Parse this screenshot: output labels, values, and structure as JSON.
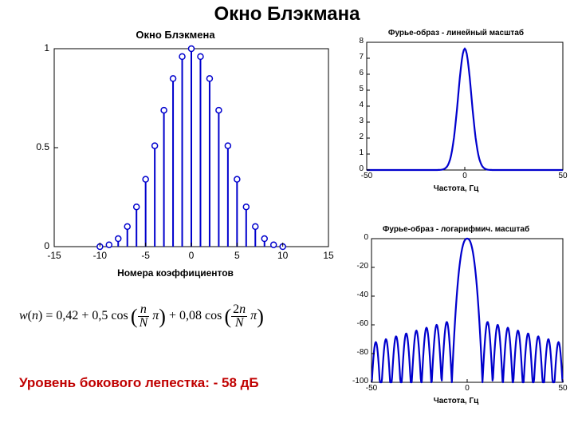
{
  "page": {
    "title": "Окно Блэкмана",
    "title_color": "#000000",
    "sidelobe_text": "Уровень бокового лепестка: - 58 дБ",
    "sidelobe_color": "#c00000",
    "formula_html": "<i>w</i>(<i>n</i>) = 0,42 + 0,5 cos&#8201;<span style='display:inline-block;vertical-align:middle;font-size:26px;'>(</span><span style='display:inline-block;vertical-align:middle;text-align:center;line-height:1;'><span style='display:block;border-bottom:1px solid #000;padding:0 2px;'><i>n</i></span><span style='display:block;padding:0 2px;'><i>N</i></span></span>&nbsp;<i>&pi;</i><span style='display:inline-block;vertical-align:middle;font-size:26px;'>)</span> + 0,08 cos&#8201;<span style='display:inline-block;vertical-align:middle;font-size:26px;'>(</span><span style='display:inline-block;vertical-align:middle;text-align:center;line-height:1;'><span style='display:block;border-bottom:1px solid #000;padding:0 2px;'>2<i>n</i></span><span style='display:block;padding:0 2px;'><i>N</i></span></span>&nbsp;<i>&pi;</i><span style='display:inline-block;vertical-align:middle;font-size:26px;'>)</span>"
  },
  "stem_chart": {
    "type": "stem",
    "title": "Окно Блэкмена",
    "xlabel": "Номера коэффициентов",
    "xlim": [
      -15,
      15
    ],
    "ylim": [
      0,
      1
    ],
    "xticks": [
      -15,
      -10,
      -5,
      0,
      5,
      10,
      15
    ],
    "yticks": [
      0,
      0.5,
      1
    ],
    "ytick_labels": [
      "0",
      "0.5",
      "1"
    ],
    "n": [
      -10,
      -9,
      -8,
      -7,
      -6,
      -5,
      -4,
      -3,
      -2,
      -1,
      0,
      1,
      2,
      3,
      4,
      5,
      6,
      7,
      8,
      9,
      10
    ],
    "values": [
      0.0,
      0.0092,
      0.0402,
      0.1014,
      0.2008,
      0.34,
      0.5098,
      0.6892,
      0.8492,
      0.9602,
      1.0,
      0.9602,
      0.8492,
      0.6892,
      0.5098,
      0.34,
      0.2008,
      0.1014,
      0.0402,
      0.0092,
      0.0
    ],
    "stem_color": "#0000cd",
    "marker_edge": "#0000cd",
    "marker_fill": "#ffffff",
    "marker_r": 3.5,
    "line_w": 2,
    "bg": "#ffffff",
    "box_color": "#000000",
    "title_fontsize": 13,
    "label_fontsize": 12,
    "tick_fontsize": 12
  },
  "linear_chart": {
    "type": "line",
    "title": "Фурье-образ - линейный масштаб",
    "xlabel": "Частота, Гц",
    "xlim": [
      -50,
      50
    ],
    "ylim": [
      0,
      8
    ],
    "xticks": [
      -50,
      0,
      50
    ],
    "yticks": [
      0,
      1,
      2,
      3,
      4,
      5,
      6,
      7,
      8
    ],
    "curve_color": "#0000cd",
    "line_w": 2.2,
    "bg": "#ffffff",
    "box_color": "#000000",
    "title_fontsize": 10,
    "label_fontsize": 10,
    "tick_fontsize": 10,
    "peak": 7.6,
    "half_width": 8
  },
  "log_chart": {
    "type": "line",
    "title": "Фурье-образ - логарифмич. масштаб",
    "xlabel": "Частота, Гц",
    "xlim": [
      -50,
      50
    ],
    "ylim": [
      -100,
      0
    ],
    "xticks": [
      -50,
      0,
      50
    ],
    "yticks": [
      -100,
      -80,
      -60,
      -40,
      -20,
      0
    ],
    "curve_color": "#0000cd",
    "line_w": 2.2,
    "bg": "#ffffff",
    "box_color": "#000000",
    "title_fontsize": 10,
    "label_fontsize": 10,
    "tick_fontsize": 10,
    "mainlobe_half_width": 8,
    "sidelobe_level": -58,
    "lobe_spacing": 5.3,
    "notch_drop": 42
  }
}
